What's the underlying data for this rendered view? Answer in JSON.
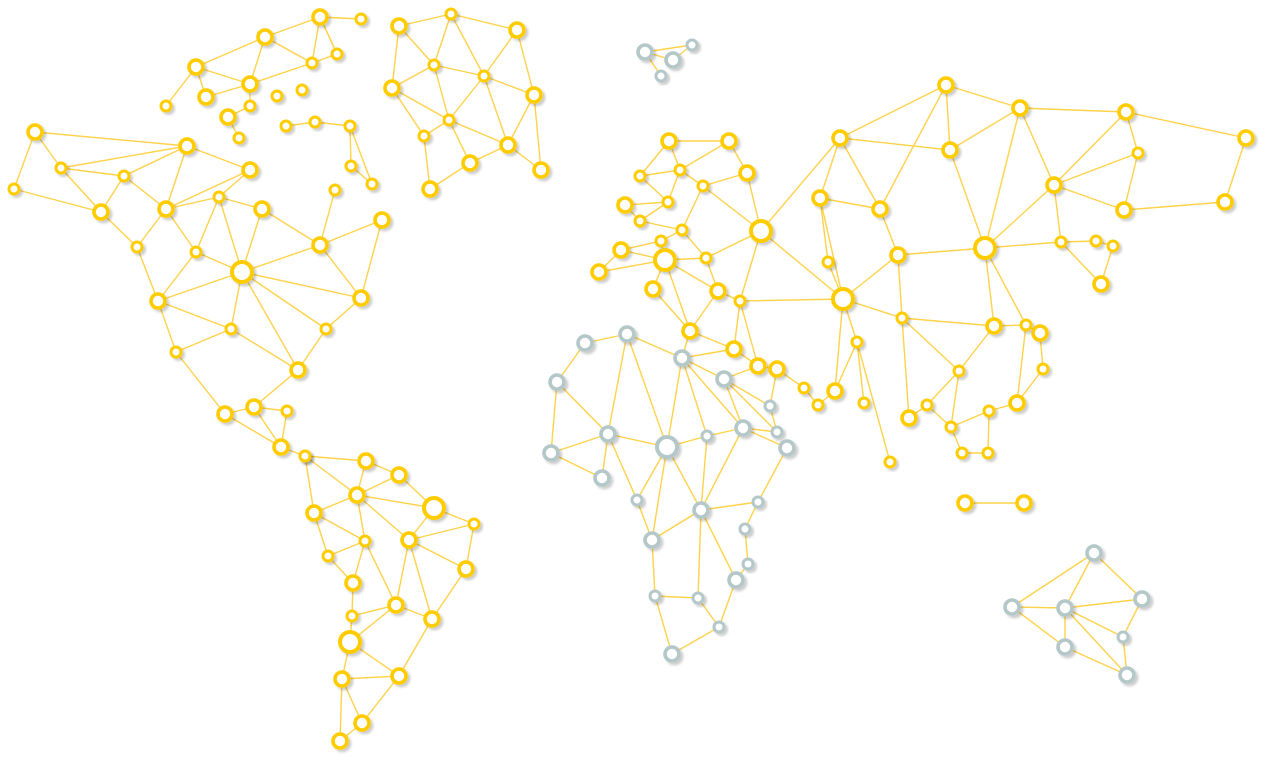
{
  "palette": {
    "background": "#ffffff",
    "active": "#ffcc00",
    "inactive": "#b4c7c9",
    "edge": "#ffd24a",
    "shadow": "rgba(0,0,0,0.18)"
  },
  "legend": "none",
  "regions": [
    {
      "name": "north-america",
      "status": "active"
    },
    {
      "name": "greenland",
      "status": "active"
    },
    {
      "name": "south-america",
      "status": "active"
    },
    {
      "name": "europe",
      "status": "active"
    },
    {
      "name": "asia",
      "status": "active"
    },
    {
      "name": "svalbard",
      "status": "inactive"
    },
    {
      "name": "africa",
      "status": "inactive"
    },
    {
      "name": "australia",
      "status": "inactive"
    }
  ]
}
